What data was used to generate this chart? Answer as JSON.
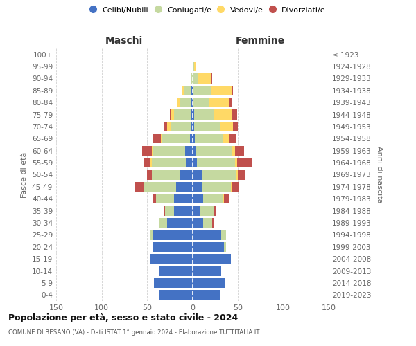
{
  "age_groups": [
    "0-4",
    "5-9",
    "10-14",
    "15-19",
    "20-24",
    "25-29",
    "30-34",
    "35-39",
    "40-44",
    "45-49",
    "50-54",
    "55-59",
    "60-64",
    "65-69",
    "70-74",
    "75-79",
    "80-84",
    "85-89",
    "90-94",
    "95-99",
    "100+"
  ],
  "birth_years": [
    "2019-2023",
    "2014-2018",
    "2009-2013",
    "2004-2008",
    "1999-2003",
    "1994-1998",
    "1989-1993",
    "1984-1988",
    "1979-1983",
    "1974-1978",
    "1969-1973",
    "1964-1968",
    "1959-1963",
    "1954-1958",
    "1949-1953",
    "1944-1948",
    "1939-1943",
    "1934-1938",
    "1929-1933",
    "1924-1928",
    "≤ 1923"
  ],
  "colors": {
    "celibe": "#4472C4",
    "coniugato": "#C5D9A0",
    "vedovo": "#FFD966",
    "divorziato": "#C0504D"
  },
  "maschi": {
    "celibe": [
      37,
      42,
      37,
      46,
      43,
      44,
      28,
      20,
      20,
      18,
      13,
      7,
      8,
      3,
      2,
      2,
      1,
      1,
      0,
      0,
      0
    ],
    "coniugato": [
      0,
      0,
      0,
      0,
      0,
      2,
      8,
      10,
      20,
      35,
      32,
      38,
      36,
      30,
      22,
      18,
      12,
      8,
      2,
      0,
      0
    ],
    "vedovo": [
      0,
      0,
      0,
      0,
      0,
      0,
      0,
      0,
      0,
      1,
      0,
      1,
      1,
      2,
      4,
      3,
      4,
      2,
      0,
      0,
      0
    ],
    "divorziato": [
      0,
      0,
      0,
      0,
      0,
      0,
      0,
      2,
      3,
      10,
      5,
      8,
      10,
      8,
      3,
      2,
      0,
      0,
      0,
      0,
      0
    ]
  },
  "femmine": {
    "nubile": [
      30,
      36,
      32,
      42,
      35,
      32,
      12,
      8,
      12,
      10,
      10,
      5,
      4,
      3,
      2,
      2,
      1,
      1,
      1,
      0,
      0
    ],
    "coniugata": [
      0,
      0,
      0,
      0,
      2,
      5,
      10,
      16,
      22,
      32,
      38,
      42,
      40,
      30,
      28,
      22,
      18,
      20,
      5,
      2,
      0
    ],
    "vedova": [
      0,
      0,
      0,
      0,
      0,
      0,
      0,
      0,
      1,
      1,
      2,
      2,
      3,
      8,
      15,
      20,
      22,
      22,
      15,
      2,
      1
    ],
    "divorziata": [
      0,
      0,
      0,
      0,
      0,
      0,
      2,
      2,
      5,
      8,
      8,
      17,
      10,
      7,
      5,
      5,
      3,
      2,
      1,
      0,
      0
    ]
  },
  "title": "Popolazione per età, sesso e stato civile - 2024",
  "subtitle": "COMUNE DI BESANO (VA) - Dati ISTAT 1° gennaio 2024 - Elaborazione TUTTITALIA.IT",
  "xlabel_left": "Maschi",
  "xlabel_right": "Femmine",
  "ylabel_left": "Fasce di età",
  "ylabel_right": "Anni di nascita",
  "xlim": 150,
  "legend_labels": [
    "Celibi/Nubili",
    "Coniugati/e",
    "Vedovi/e",
    "Divorziati/e"
  ],
  "background_color": "#ffffff"
}
